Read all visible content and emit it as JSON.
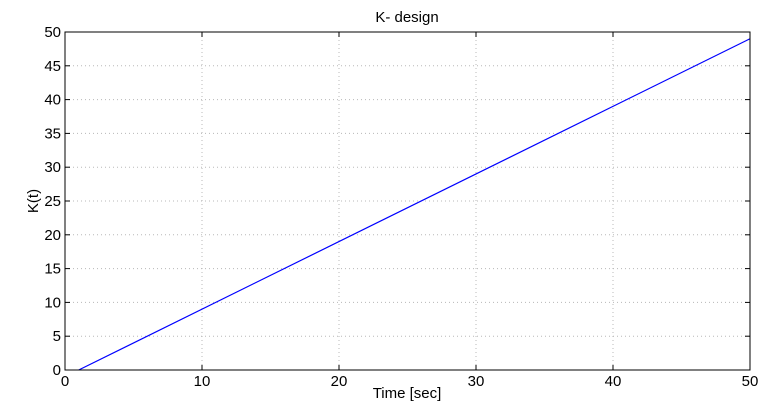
{
  "chart_data": {
    "type": "line",
    "title": "K- design",
    "xlabel": "Time [sec]",
    "ylabel": "K(t)",
    "xlim": [
      0,
      50
    ],
    "ylim": [
      0,
      50
    ],
    "xticks": [
      0,
      10,
      20,
      30,
      40,
      50
    ],
    "yticks": [
      0,
      5,
      10,
      15,
      20,
      25,
      30,
      35,
      40,
      45,
      50
    ],
    "grid": true,
    "series": [
      {
        "color": "#0000ff",
        "x": [
          1,
          50
        ],
        "y": [
          0,
          49
        ]
      }
    ]
  }
}
